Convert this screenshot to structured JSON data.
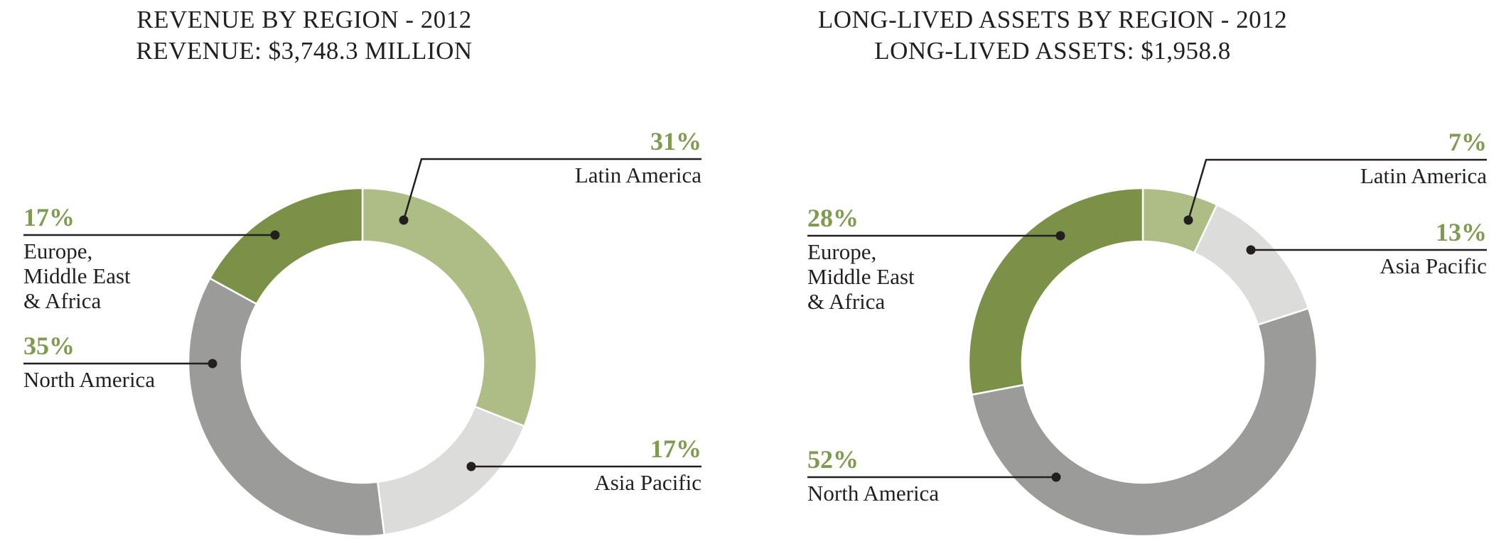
{
  "page": {
    "background": "#ffffff"
  },
  "colors": {
    "text_dark": "#231f20",
    "accent_green": "#7e9b50",
    "leader_line": "#231f20",
    "segment_light_green": "#adbd85",
    "segment_light_gray": "#dcdcda",
    "segment_gray": "#9b9b99",
    "segment_olive": "#7b9147"
  },
  "chart_data": [
    {
      "type": "pie",
      "variant": "donut",
      "title": "REVENUE BY REGION - 2012",
      "subtitle": "REVENUE: $3,748.3 MILLION",
      "start_angle_deg": 0,
      "direction": "clockwise",
      "legend_position": "callout-labels",
      "segments": [
        {
          "label": "Latin America",
          "display_label": "Latin America",
          "value": 31,
          "value_label": "31%",
          "color": "#adbd85"
        },
        {
          "label": "Asia Pacific",
          "display_label": "Asia Pacific",
          "value": 17,
          "value_label": "17%",
          "color": "#dcdcda"
        },
        {
          "label": "North America",
          "display_label": "North America",
          "value": 35,
          "value_label": "35%",
          "color": "#9b9b99"
        },
        {
          "label": "Europe, Middle East & Africa",
          "display_label": "Europe,\nMiddle East\n& Africa",
          "value": 17,
          "value_label": "17%",
          "color": "#7b9147"
        }
      ]
    },
    {
      "type": "pie",
      "variant": "donut",
      "title": "LONG-LIVED ASSETS BY REGION - 2012",
      "subtitle": "LONG-LIVED ASSETS: $1,958.8",
      "start_angle_deg": 0,
      "direction": "clockwise",
      "legend_position": "callout-labels",
      "segments": [
        {
          "label": "Latin America",
          "display_label": "Latin America",
          "value": 7,
          "value_label": "7%",
          "color": "#adbd85"
        },
        {
          "label": "Asia Pacific",
          "display_label": "Asia Pacific",
          "value": 13,
          "value_label": "13%",
          "color": "#dcdcda"
        },
        {
          "label": "North America",
          "display_label": "North America",
          "value": 52,
          "value_label": "52%",
          "color": "#9b9b99"
        },
        {
          "label": "Europe, Middle East & Africa",
          "display_label": "Europe,\nMiddle East\n& Africa",
          "value": 28,
          "value_label": "28%",
          "color": "#7b9147"
        }
      ]
    }
  ]
}
